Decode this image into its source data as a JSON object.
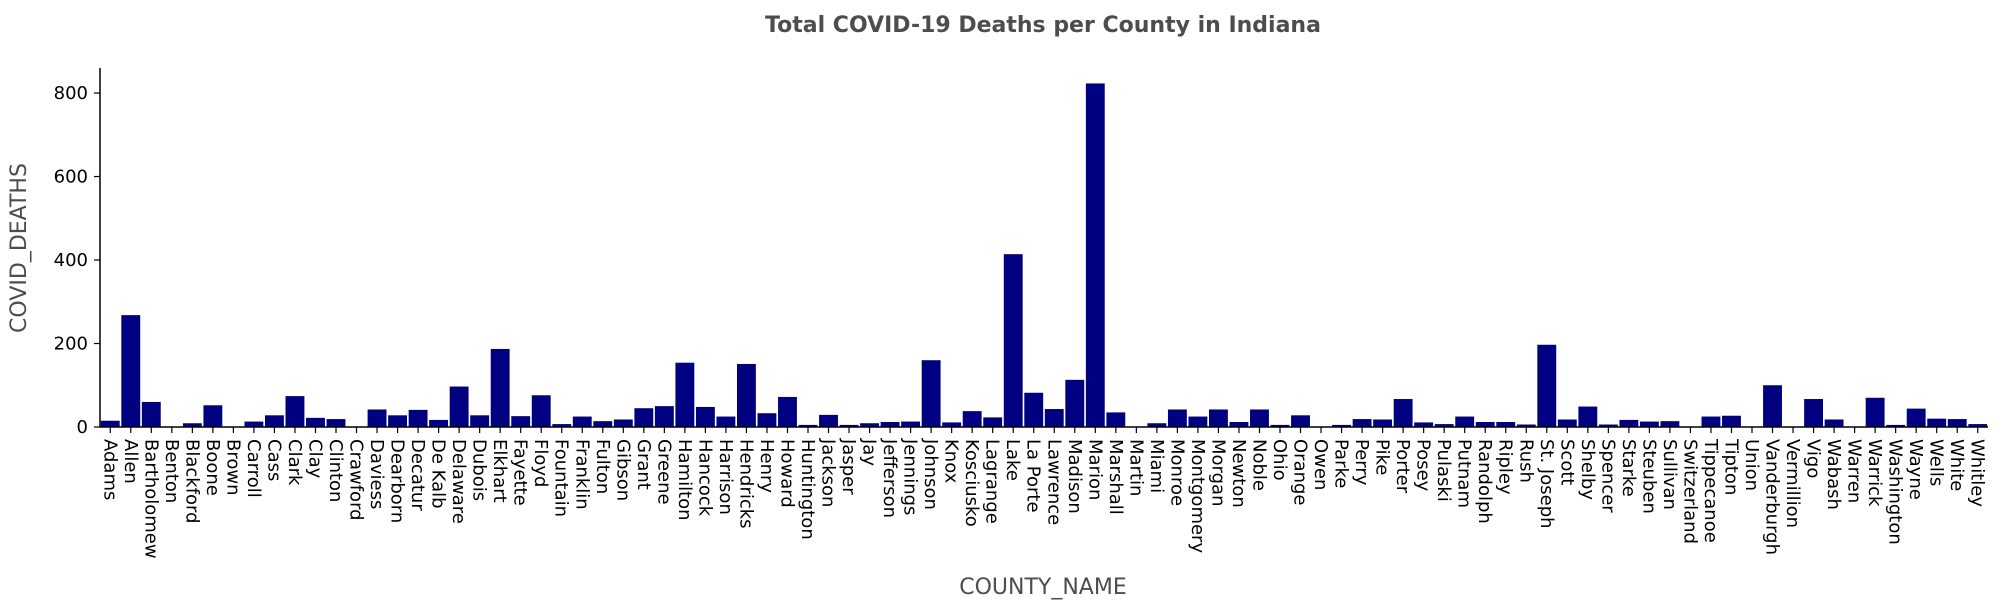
{
  "chart_data": {
    "type": "bar",
    "title": "Total COVID-19 Deaths per County in Indiana",
    "xlabel": "COUNTY_NAME",
    "ylabel": "COVID_DEATHS",
    "ylim": [
      0,
      860
    ],
    "yticks": [
      0,
      200,
      400,
      600,
      800
    ],
    "grid": false,
    "colors": {
      "bar": "#000080"
    },
    "categories": [
      "Adams",
      "Allen",
      "Bartholomew",
      "Benton",
      "Blackford",
      "Boone",
      "Brown",
      "Carroll",
      "Cass",
      "Clark",
      "Clay",
      "Clinton",
      "Crawford",
      "Daviess",
      "Dearborn",
      "Decatur",
      "De Kalb",
      "Delaware",
      "Dubois",
      "Elkhart",
      "Fayette",
      "Floyd",
      "Fountain",
      "Franklin",
      "Fulton",
      "Gibson",
      "Grant",
      "Greene",
      "Hamilton",
      "Hancock",
      "Harrison",
      "Hendricks",
      "Henry",
      "Howard",
      "Huntington",
      "Jackson",
      "Jasper",
      "Jay",
      "Jefferson",
      "Jennings",
      "Johnson",
      "Knox",
      "Kosciusko",
      "Lagrange",
      "Lake",
      "La Porte",
      "Lawrence",
      "Madison",
      "Marion",
      "Marshall",
      "Martin",
      "Miami",
      "Monroe",
      "Montgomery",
      "Morgan",
      "Newton",
      "Noble",
      "Ohio",
      "Orange",
      "Owen",
      "Parke",
      "Perry",
      "Pike",
      "Porter",
      "Posey",
      "Pulaski",
      "Putnam",
      "Randolph",
      "Ripley",
      "Rush",
      "St. Joseph",
      "Scott",
      "Shelby",
      "Spencer",
      "Starke",
      "Steuben",
      "Sullivan",
      "Switzerland",
      "Tippecanoe",
      "Tipton",
      "Union",
      "Vanderburgh",
      "Vermillion",
      "Vigo",
      "Wabash",
      "Warren",
      "Warrick",
      "Washington",
      "Wayne",
      "Wells",
      "White",
      "Whitley"
    ],
    "values": [
      15,
      268,
      60,
      0,
      9,
      52,
      0,
      13,
      28,
      74,
      22,
      19,
      0,
      42,
      28,
      41,
      17,
      97,
      28,
      187,
      26,
      76,
      7,
      25,
      14,
      18,
      45,
      50,
      154,
      48,
      25,
      151,
      33,
      72,
      5,
      29,
      5,
      9,
      12,
      13,
      160,
      11,
      38,
      23,
      414,
      82,
      43,
      113,
      823,
      35,
      0,
      9,
      42,
      25,
      42,
      12,
      42,
      5,
      28,
      0,
      5,
      19,
      18,
      67,
      11,
      7,
      25,
      12,
      12,
      6,
      197,
      18,
      49,
      6,
      17,
      13,
      14,
      0,
      25,
      27,
      0,
      100,
      0,
      67,
      18,
      0,
      70,
      5,
      44,
      20,
      19,
      7
    ]
  }
}
